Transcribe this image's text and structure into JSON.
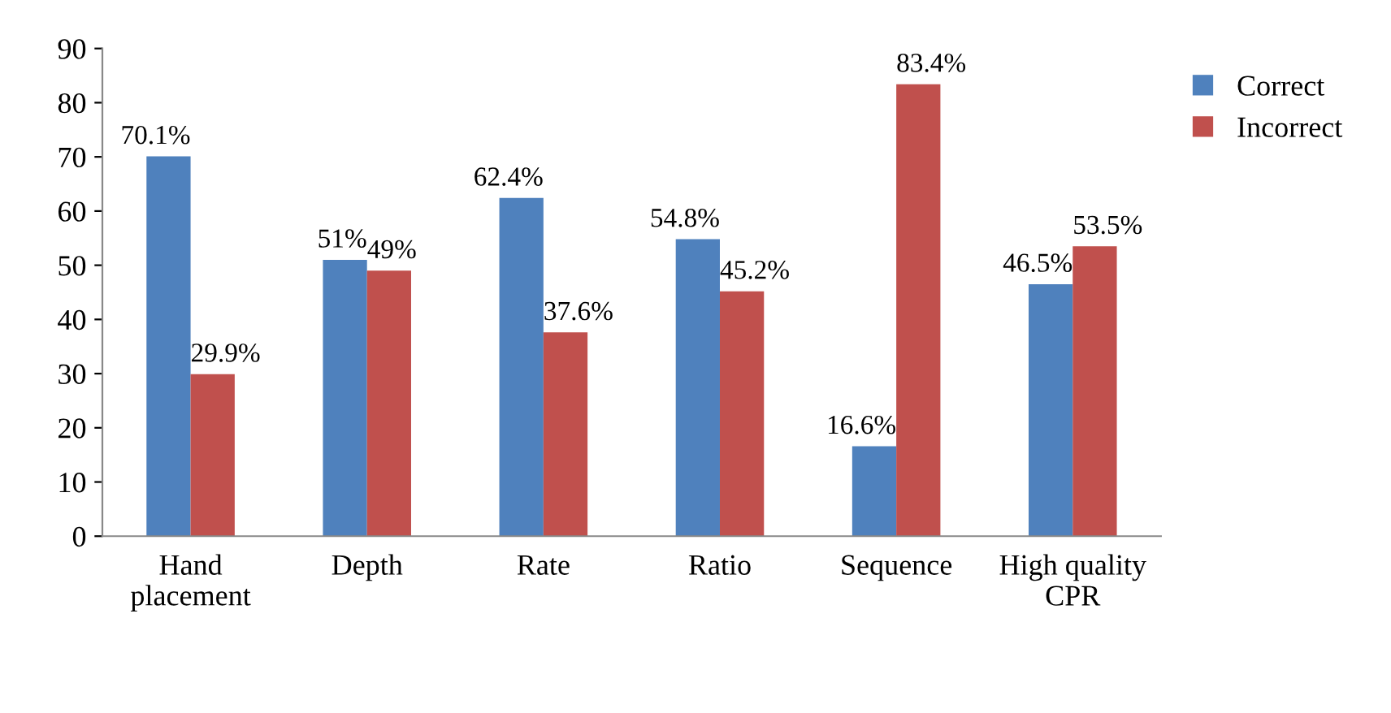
{
  "chart_data": {
    "type": "bar",
    "categories": [
      "Hand\nplacement",
      "Depth",
      "Rate",
      "Ratio",
      "Sequence",
      "High quality\nCPR"
    ],
    "series": [
      {
        "name": "Correct",
        "color": "#4f81bd",
        "values": [
          70.1,
          51,
          62.4,
          54.8,
          16.6,
          46.5
        ],
        "value_labels": [
          "70.1%",
          "51%",
          "62.4%",
          "54.8%",
          "16.6%",
          "46.5%"
        ]
      },
      {
        "name": "Incorrect",
        "color": "#c0504d",
        "values": [
          29.9,
          49,
          37.6,
          45.2,
          83.4,
          53.5
        ],
        "value_labels": [
          "29.9%",
          "49%",
          "37.6%",
          "45.2%",
          "83.4%",
          "53.5%"
        ]
      }
    ],
    "ylim": [
      0,
      90
    ],
    "yticks": [
      0,
      10,
      20,
      30,
      40,
      50,
      60,
      70,
      80,
      90
    ],
    "grid": false,
    "legend": "top right"
  }
}
